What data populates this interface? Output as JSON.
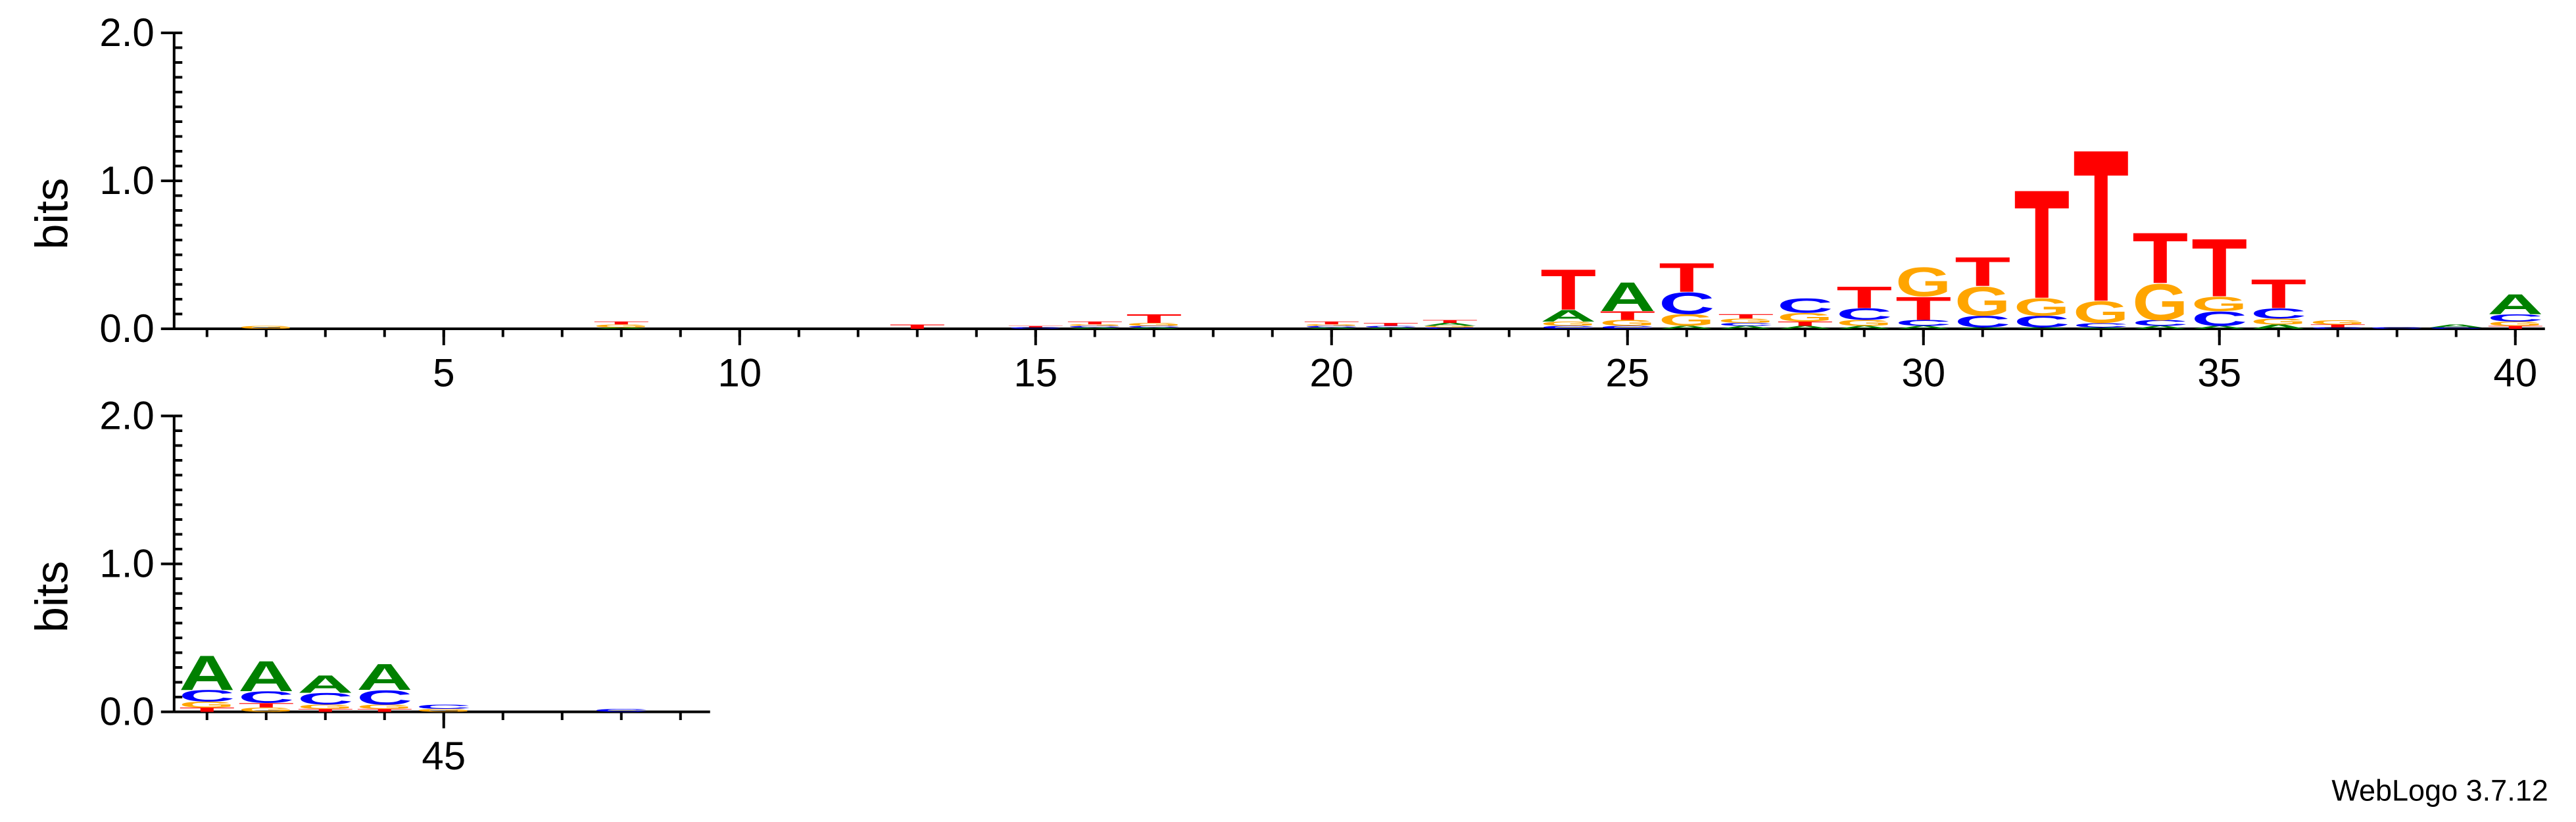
{
  "footer": "WebLogo 3.7.12",
  "chart_data": [
    {
      "type": "logo",
      "ylabel": "bits",
      "xlim": [
        0.5,
        40.5
      ],
      "xticks": [
        5,
        10,
        15,
        20,
        25,
        30,
        35,
        40
      ],
      "ylim": [
        0,
        2
      ],
      "yticks": [
        {
          "value": 0,
          "label": "0.0"
        },
        {
          "value": 1,
          "label": "1.0"
        },
        {
          "value": 2,
          "label": "2.0"
        }
      ],
      "series": [
        {
          "name": "A",
          "color": "#008000",
          "values": [
            0,
            0,
            0,
            0,
            0,
            0,
            0,
            0.01,
            0,
            0,
            0,
            0,
            0,
            0,
            0,
            0.01,
            0.01,
            0,
            0,
            0.01,
            0.01,
            0.02,
            0,
            0.08,
            0.2,
            0.02,
            0.02,
            0.02,
            0.02,
            0.02,
            0.01,
            0.01,
            0.01,
            0.02,
            0.02,
            0.03,
            0,
            0,
            0.02,
            0.14
          ]
        },
        {
          "name": "C",
          "color": "#0000ff",
          "values": [
            0,
            0,
            0,
            0,
            0,
            0,
            0,
            0,
            0,
            0,
            0,
            0,
            0,
            0,
            0.01,
            0.01,
            0.01,
            0,
            0,
            0.01,
            0.01,
            0.01,
            0,
            0.02,
            0.02,
            0.15,
            0.02,
            0.1,
            0.08,
            0.04,
            0.08,
            0.08,
            0.03,
            0.04,
            0.1,
            0.07,
            0.01,
            0.01,
            0.01,
            0.05
          ]
        },
        {
          "name": "G",
          "color": "#ffa500",
          "values": [
            0,
            0.02,
            0,
            0,
            0,
            0,
            0,
            0.02,
            0,
            0,
            0,
            0,
            0,
            0,
            0,
            0.01,
            0.02,
            0,
            0,
            0.01,
            0,
            0.01,
            0,
            0.03,
            0.04,
            0.08,
            0.03,
            0.06,
            0.04,
            0.2,
            0.2,
            0.12,
            0.15,
            0.25,
            0.1,
            0.04,
            0.03,
            0,
            0,
            0.03
          ]
        },
        {
          "name": "T",
          "color": "#ff0000",
          "values": [
            0,
            0,
            0,
            0,
            0,
            0,
            0,
            0.02,
            0,
            0,
            0,
            0,
            0.03,
            0,
            0.01,
            0.02,
            0.06,
            0,
            0,
            0.02,
            0.02,
            0.02,
            0,
            0.28,
            0.06,
            0.2,
            0.03,
            0.03,
            0.15,
            0.16,
            0.2,
            0.75,
            1.05,
            0.35,
            0.4,
            0.2,
            0.02,
            0,
            0,
            0.02
          ]
        }
      ]
    },
    {
      "type": "logo",
      "ylabel": "bits",
      "xlim": [
        40.5,
        49.5
      ],
      "xticks": [
        45
      ],
      "ylim": [
        0,
        2
      ],
      "yticks": [
        {
          "value": 0,
          "label": "0.0"
        },
        {
          "value": 1,
          "label": "1.0"
        },
        {
          "value": 2,
          "label": "2.0"
        }
      ],
      "series": [
        {
          "name": "A",
          "color": "#008000",
          "values": [
            0.24,
            0.21,
            0.12,
            0.18,
            0,
            0,
            0,
            0,
            0
          ]
        },
        {
          "name": "C",
          "color": "#0000ff",
          "values": [
            0.08,
            0.08,
            0.08,
            0.1,
            0.03,
            0,
            0,
            0.02,
            0
          ]
        },
        {
          "name": "G",
          "color": "#ffa500",
          "values": [
            0.04,
            0.03,
            0.03,
            0.03,
            0.02,
            0,
            0,
            0,
            0
          ]
        },
        {
          "name": "T",
          "color": "#ff0000",
          "values": [
            0.03,
            0.03,
            0.02,
            0.02,
            0,
            0,
            0,
            0,
            0
          ]
        }
      ]
    }
  ]
}
